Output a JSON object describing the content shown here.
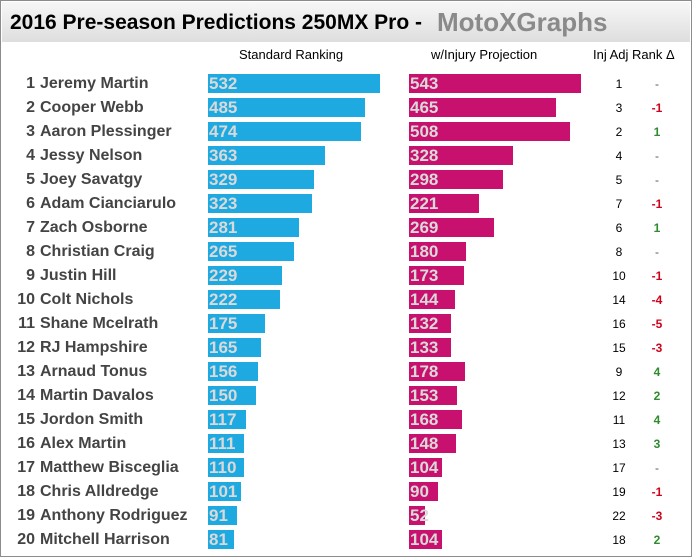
{
  "chart_data": {
    "type": "bar",
    "title": "2016 Pre-season Predictions 250MX Pro",
    "title_separator": "-",
    "brand": "MotoXGraphs",
    "column_headers": {
      "standard": "Standard Ranking",
      "injury": "w/Injury Projection",
      "adjusted_rank": "Inj Adj Rank Δ"
    },
    "xlim": [
      0,
      560
    ],
    "colors": {
      "standard": "#1fa9e1",
      "injury": "#c8106e",
      "positive_delta": "#2e8b2e",
      "negative_delta": "#d0021b",
      "zero_delta": "#555555"
    },
    "series": [
      {
        "name": "Standard Ranking",
        "values": [
          532,
          485,
          474,
          363,
          329,
          323,
          281,
          265,
          229,
          222,
          175,
          165,
          156,
          150,
          117,
          111,
          110,
          101,
          91,
          81
        ]
      },
      {
        "name": "w/Injury Projection",
        "values": [
          543,
          465,
          508,
          328,
          298,
          221,
          269,
          180,
          173,
          144,
          132,
          133,
          178,
          153,
          168,
          148,
          104,
          90,
          52,
          104
        ]
      }
    ],
    "riders": [
      {
        "rank": "1",
        "name": "Jeremy Martin",
        "inj_rank": "1",
        "delta": "-"
      },
      {
        "rank": "2",
        "name": "Cooper Webb",
        "inj_rank": "3",
        "delta": "-1"
      },
      {
        "rank": "3",
        "name": "Aaron Plessinger",
        "inj_rank": "2",
        "delta": "1"
      },
      {
        "rank": "4",
        "name": "Jessy Nelson",
        "inj_rank": "4",
        "delta": "-"
      },
      {
        "rank": "5",
        "name": "Joey Savatgy",
        "inj_rank": "5",
        "delta": "-"
      },
      {
        "rank": "6",
        "name": "Adam Cianciarulo",
        "inj_rank": "7",
        "delta": "-1"
      },
      {
        "rank": "7",
        "name": "Zach Osborne",
        "inj_rank": "6",
        "delta": "1"
      },
      {
        "rank": "8",
        "name": "Christian Craig",
        "inj_rank": "8",
        "delta": "-"
      },
      {
        "rank": "9",
        "name": "Justin Hill",
        "inj_rank": "10",
        "delta": "-1"
      },
      {
        "rank": "10",
        "name": "Colt Nichols",
        "inj_rank": "14",
        "delta": "-4"
      },
      {
        "rank": "11",
        "name": "Shane Mcelrath",
        "inj_rank": "16",
        "delta": "-5"
      },
      {
        "rank": "12",
        "name": "RJ Hampshire",
        "inj_rank": "15",
        "delta": "-3"
      },
      {
        "rank": "13",
        "name": "Arnaud Tonus",
        "inj_rank": "9",
        "delta": "4"
      },
      {
        "rank": "14",
        "name": "Martin Davalos",
        "inj_rank": "12",
        "delta": "2"
      },
      {
        "rank": "15",
        "name": "Jordon Smith",
        "inj_rank": "11",
        "delta": "4"
      },
      {
        "rank": "16",
        "name": "Alex Martin",
        "inj_rank": "13",
        "delta": "3"
      },
      {
        "rank": "17",
        "name": "Matthew Bisceglia",
        "inj_rank": "17",
        "delta": "-"
      },
      {
        "rank": "18",
        "name": "Chris Alldredge",
        "inj_rank": "19",
        "delta": "-1"
      },
      {
        "rank": "19",
        "name": "Anthony Rodriguez",
        "inj_rank": "22",
        "delta": "-3"
      },
      {
        "rank": "20",
        "name": "Mitchell Harrison",
        "inj_rank": "18",
        "delta": "2"
      }
    ]
  }
}
